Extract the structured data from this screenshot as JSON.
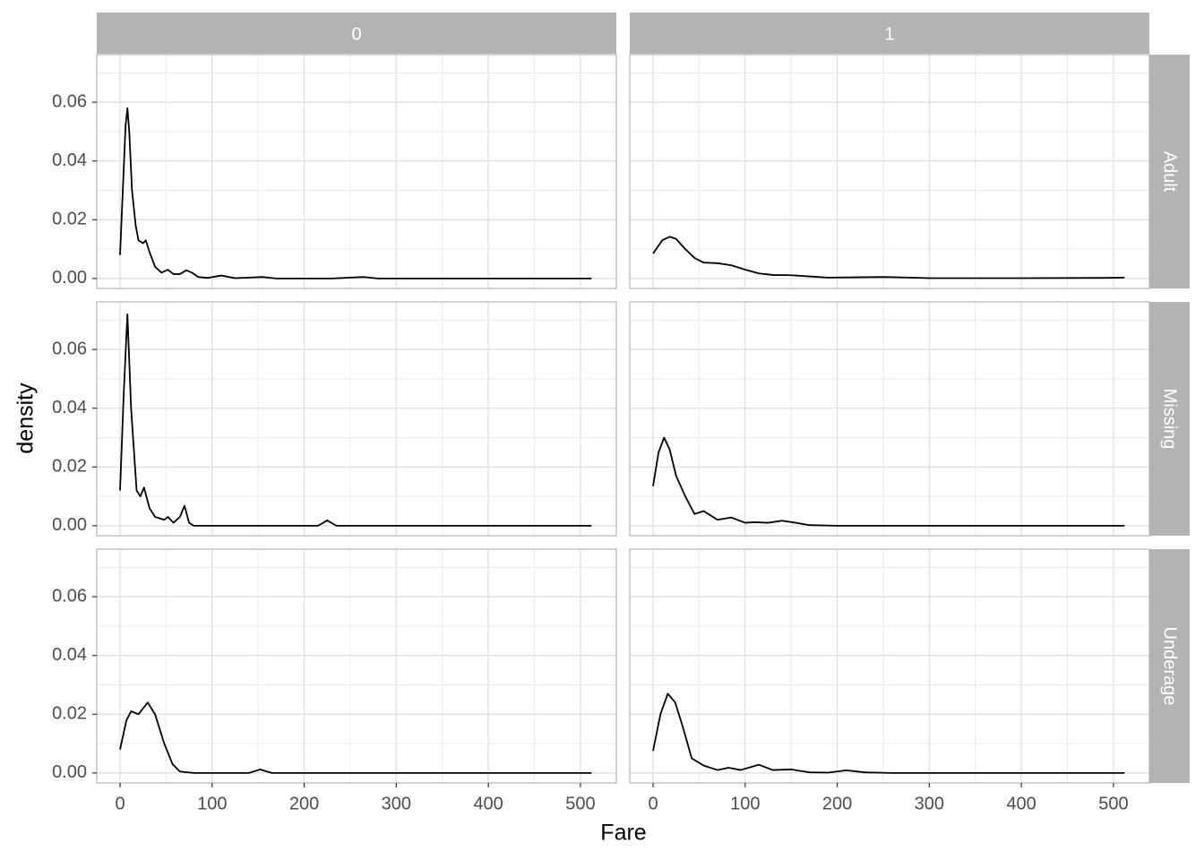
{
  "chart_data": {
    "type": "line",
    "xlabel": "Fare",
    "ylabel": "density",
    "columns": [
      "0",
      "1"
    ],
    "rows": [
      "Adult",
      "Missing",
      "Underage"
    ],
    "xlim": [
      -25.3,
      539
    ],
    "ylim": [
      -0.0034,
      0.0762
    ],
    "xticks": [
      0,
      100,
      200,
      300,
      400,
      500
    ],
    "yticks": [
      {
        "value": 0,
        "label": "0.00"
      },
      0.02,
      0.04,
      0.06
    ],
    "grid": true,
    "color": "#000000",
    "panels": [
      [
        {
          "x": [
            0,
            3,
            6,
            8,
            10,
            13,
            17,
            20,
            25,
            28,
            32,
            38,
            45,
            52,
            58,
            65,
            72,
            78,
            85,
            95,
            110,
            125,
            140,
            155,
            170,
            200,
            230,
            250,
            265,
            280,
            350,
            450,
            512
          ],
          "values": [
            0.008,
            0.03,
            0.052,
            0.058,
            0.05,
            0.03,
            0.018,
            0.013,
            0.012,
            0.013,
            0.009,
            0.004,
            0.002,
            0.003,
            0.0015,
            0.0015,
            0.0028,
            0.002,
            0.0005,
            0.0002,
            0.001,
            0.0001,
            0.0003,
            0.0005,
            0,
            0,
            0,
            0.0003,
            0.0005,
            0,
            0,
            0,
            0
          ]
        },
        {
          "x": [
            0,
            10,
            18,
            25,
            35,
            45,
            55,
            70,
            85,
            100,
            115,
            130,
            150,
            170,
            190,
            220,
            250,
            280,
            300,
            400,
            490,
            512
          ],
          "values": [
            0.0085,
            0.013,
            0.0142,
            0.0135,
            0.01,
            0.007,
            0.0054,
            0.0052,
            0.0045,
            0.003,
            0.0017,
            0.0012,
            0.0011,
            0.0007,
            0.0003,
            0.0004,
            0.0005,
            0.0003,
            0.0001,
            0.0001,
            0.0002,
            0.0003
          ]
        }
      ],
      [
        {
          "x": [
            0,
            4,
            8,
            12,
            18,
            22,
            26,
            32,
            38,
            48,
            52,
            58,
            65,
            70,
            75,
            80,
            215,
            225,
            235,
            512
          ],
          "values": [
            0.012,
            0.045,
            0.072,
            0.04,
            0.012,
            0.01,
            0.013,
            0.006,
            0.003,
            0.002,
            0.003,
            0.001,
            0.003,
            0.0068,
            0.001,
            0,
            0,
            0.0018,
            0,
            0
          ]
        },
        {
          "x": [
            0,
            6,
            12,
            18,
            25,
            35,
            45,
            55,
            70,
            85,
            100,
            110,
            125,
            140,
            155,
            170,
            200,
            512
          ],
          "values": [
            0.0135,
            0.025,
            0.03,
            0.026,
            0.017,
            0.01,
            0.004,
            0.005,
            0.002,
            0.0028,
            0.001,
            0.0012,
            0.001,
            0.0017,
            0.001,
            0.0002,
            0,
            0
          ]
        }
      ],
      [
        {
          "x": [
            0,
            7,
            12,
            20,
            30,
            38,
            48,
            57,
            65,
            80,
            140,
            152,
            165,
            512
          ],
          "values": [
            0.008,
            0.018,
            0.021,
            0.02,
            0.024,
            0.02,
            0.01,
            0.003,
            0.0005,
            0,
            0,
            0.0012,
            0,
            0
          ]
        },
        {
          "x": [
            0,
            8,
            16,
            24,
            32,
            42,
            55,
            70,
            82,
            95,
            115,
            130,
            150,
            170,
            190,
            210,
            230,
            260,
            512
          ],
          "values": [
            0.0075,
            0.02,
            0.027,
            0.024,
            0.016,
            0.005,
            0.0025,
            0.001,
            0.0018,
            0.001,
            0.0028,
            0.001,
            0.0012,
            0.0002,
            0.0001,
            0.0009,
            0.0002,
            0,
            0
          ]
        }
      ]
    ]
  }
}
